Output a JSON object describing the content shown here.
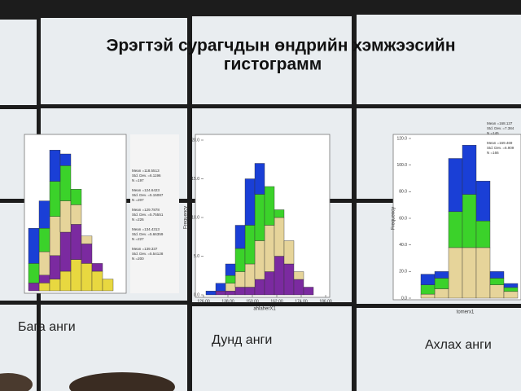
{
  "title_lines": [
    "Эрэгтэй сурагчдын өндрийн хэмжээсийн",
    "гистограмм"
  ],
  "charts": [
    {
      "caption": "Бага анги",
      "ylim": [
        0,
        40
      ],
      "series": [
        {
          "color": "#e8d840",
          "values": [
            0,
            2,
            3,
            5,
            8,
            7,
            5,
            3
          ]
        },
        {
          "color": "#7b2aa0",
          "values": [
            2,
            2,
            6,
            10,
            9,
            5,
            2,
            0
          ]
        },
        {
          "color": "#e6d49a",
          "values": [
            0,
            6,
            10,
            8,
            5,
            2,
            0,
            0
          ]
        },
        {
          "color": "#3bd22a",
          "values": [
            5,
            6,
            9,
            9,
            4,
            0,
            0,
            0
          ]
        },
        {
          "color": "#1a3fd6",
          "values": [
            9,
            7,
            8,
            3,
            0,
            0,
            0,
            0
          ]
        }
      ],
      "stats": [
        "Mean =118.5513",
        "Std. Dev. =6.1196",
        "N =197",
        "Mean =124.6423",
        "Std. Dev. =5.15087",
        "N =207",
        "Mean =129.7878",
        "Std. Dev. =5.75551",
        "N =226",
        "Mean =134.4313",
        "Std. Dev. =5.66359",
        "N =227",
        "Mean =139.337",
        "Std. Dev. =5.54128",
        "N =200"
      ]
    },
    {
      "caption": "Дунд анги",
      "x_label": "ahlaherX1",
      "y_label": "Frequency",
      "ylim": [
        0,
        20
      ],
      "yticks": [
        {
          "value": 0,
          "label": "0.0"
        },
        {
          "value": 5,
          "label": "5.0"
        },
        {
          "value": 10,
          "label": "10.0"
        },
        {
          "value": 15,
          "label": "15.0"
        },
        {
          "value": 20,
          "label": "20.0"
        }
      ],
      "xticks": [
        {
          "value": 126,
          "label": "126.00"
        },
        {
          "value": 138,
          "label": "138.00"
        },
        {
          "value": 150,
          "label": "150.00"
        },
        {
          "value": 162,
          "label": "162.00"
        },
        {
          "value": 174,
          "label": "174.00"
        },
        {
          "value": 186,
          "label": "186.00"
        }
      ],
      "series": [
        {
          "color": "#7b2aa0",
          "values": [
            0,
            0.5,
            0.5,
            1,
            1,
            2,
            3,
            5,
            4,
            2,
            1
          ]
        },
        {
          "color": "#e6d49a",
          "values": [
            0,
            0,
            1,
            2,
            3,
            5,
            6,
            5,
            3,
            1,
            0
          ]
        },
        {
          "color": "#3bd22a",
          "values": [
            0,
            0,
            1,
            3,
            5,
            6,
            5,
            1,
            0,
            0,
            0
          ]
        },
        {
          "color": "#1a3fd6",
          "values": [
            0.5,
            1,
            1.5,
            3,
            6,
            4,
            0,
            0,
            0,
            0,
            0
          ]
        }
      ]
    },
    {
      "caption": "Ахлах анги",
      "x_label": "tomerx1",
      "y_label": "Frequency",
      "ylim": [
        0,
        120
      ],
      "yticks": [
        {
          "value": 0,
          "label": "0.0"
        },
        {
          "value": 20,
          "label": "20.0"
        },
        {
          "value": 40,
          "label": "40.0"
        },
        {
          "value": 60,
          "label": "60.0"
        },
        {
          "value": 80,
          "label": "80.0"
        },
        {
          "value": 100,
          "label": "100.0"
        },
        {
          "value": 120,
          "label": "120.0"
        }
      ],
      "series": [
        {
          "color": "#e6d49a",
          "values": [
            3,
            7,
            38,
            38,
            38,
            10,
            5
          ]
        },
        {
          "color": "#3bd22a",
          "values": [
            7,
            8,
            27,
            40,
            20,
            5,
            3
          ]
        },
        {
          "color": "#1a3fd6",
          "values": [
            8,
            5,
            40,
            37,
            30,
            5,
            3
          ]
        }
      ],
      "stats": [
        "Mean =168.137",
        "Std. Dev. =7.384",
        "N =145",
        "Mean =169.469",
        "Std. Dev. =6.909",
        "N =166"
      ]
    }
  ]
}
